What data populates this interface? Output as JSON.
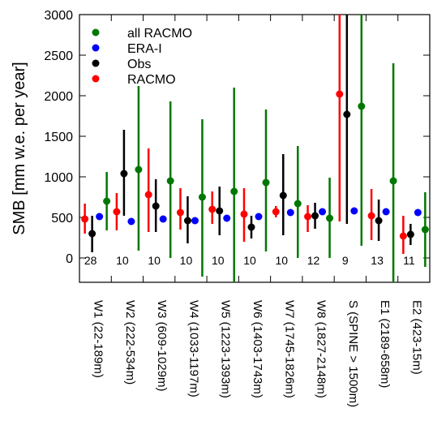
{
  "chart_data": {
    "type": "scatter",
    "title": "",
    "xlabel": "",
    "ylabel": "SMB [mm w.e. per year]",
    "ylim": [
      -300,
      3000
    ],
    "yticks": [
      0,
      500,
      1000,
      1500,
      2000,
      2500,
      3000
    ],
    "grid": false,
    "legend_position": "top-left",
    "categories": [
      "W1 (22-189m)",
      "W2 (222-534m)",
      "W3 (609-1029m)",
      "W4 (1033-1197m)",
      "W5 (1223-1393m)",
      "W6 (1403-1743m)",
      "W7 (1745-1826m)",
      "W8 (1827-2148m)",
      "S (SPINE > 1500m)",
      "E1 (2189-658m)",
      "E2 (423-15m)"
    ],
    "counts": [
      "28",
      "10",
      "10",
      "10",
      "10",
      "10",
      "10",
      "12",
      "9",
      "13",
      "11"
    ],
    "series": [
      {
        "name": "RACMO",
        "color": "#ff0000",
        "values": [
          480,
          570,
          780,
          560,
          600,
          540,
          570,
          510,
          2020,
          520,
          270
        ],
        "err_low": [
          300,
          340,
          320,
          350,
          420,
          200,
          500,
          320,
          450,
          220,
          50
        ],
        "err_high": [
          670,
          800,
          1350,
          860,
          820,
          860,
          640,
          650,
          3000,
          850,
          520
        ]
      },
      {
        "name": "Obs",
        "color": "#000000",
        "values": [
          300,
          1040,
          640,
          460,
          580,
          380,
          770,
          520,
          1770,
          460,
          290
        ],
        "err_low": [
          70,
          520,
          320,
          180,
          280,
          240,
          280,
          360,
          420,
          210,
          160
        ],
        "err_high": [
          520,
          1580,
          970,
          760,
          880,
          520,
          1280,
          680,
          3000,
          720,
          420
        ]
      },
      {
        "name": "ERA-I",
        "color": "#0000ff",
        "values": [
          510,
          450,
          480,
          460,
          490,
          510,
          560,
          570,
          580,
          570,
          560
        ]
      },
      {
        "name": "all RACMO",
        "color": "#007700",
        "values": [
          700,
          1090,
          950,
          750,
          820,
          930,
          670,
          490,
          1870,
          950,
          350
        ],
        "err_low": [
          340,
          90,
          0,
          -230,
          -300,
          80,
          0,
          0,
          150,
          -300,
          -110
        ],
        "err_high": [
          1060,
          2120,
          1930,
          1710,
          2100,
          1830,
          1380,
          990,
          3000,
          2400,
          810
        ]
      }
    ]
  }
}
